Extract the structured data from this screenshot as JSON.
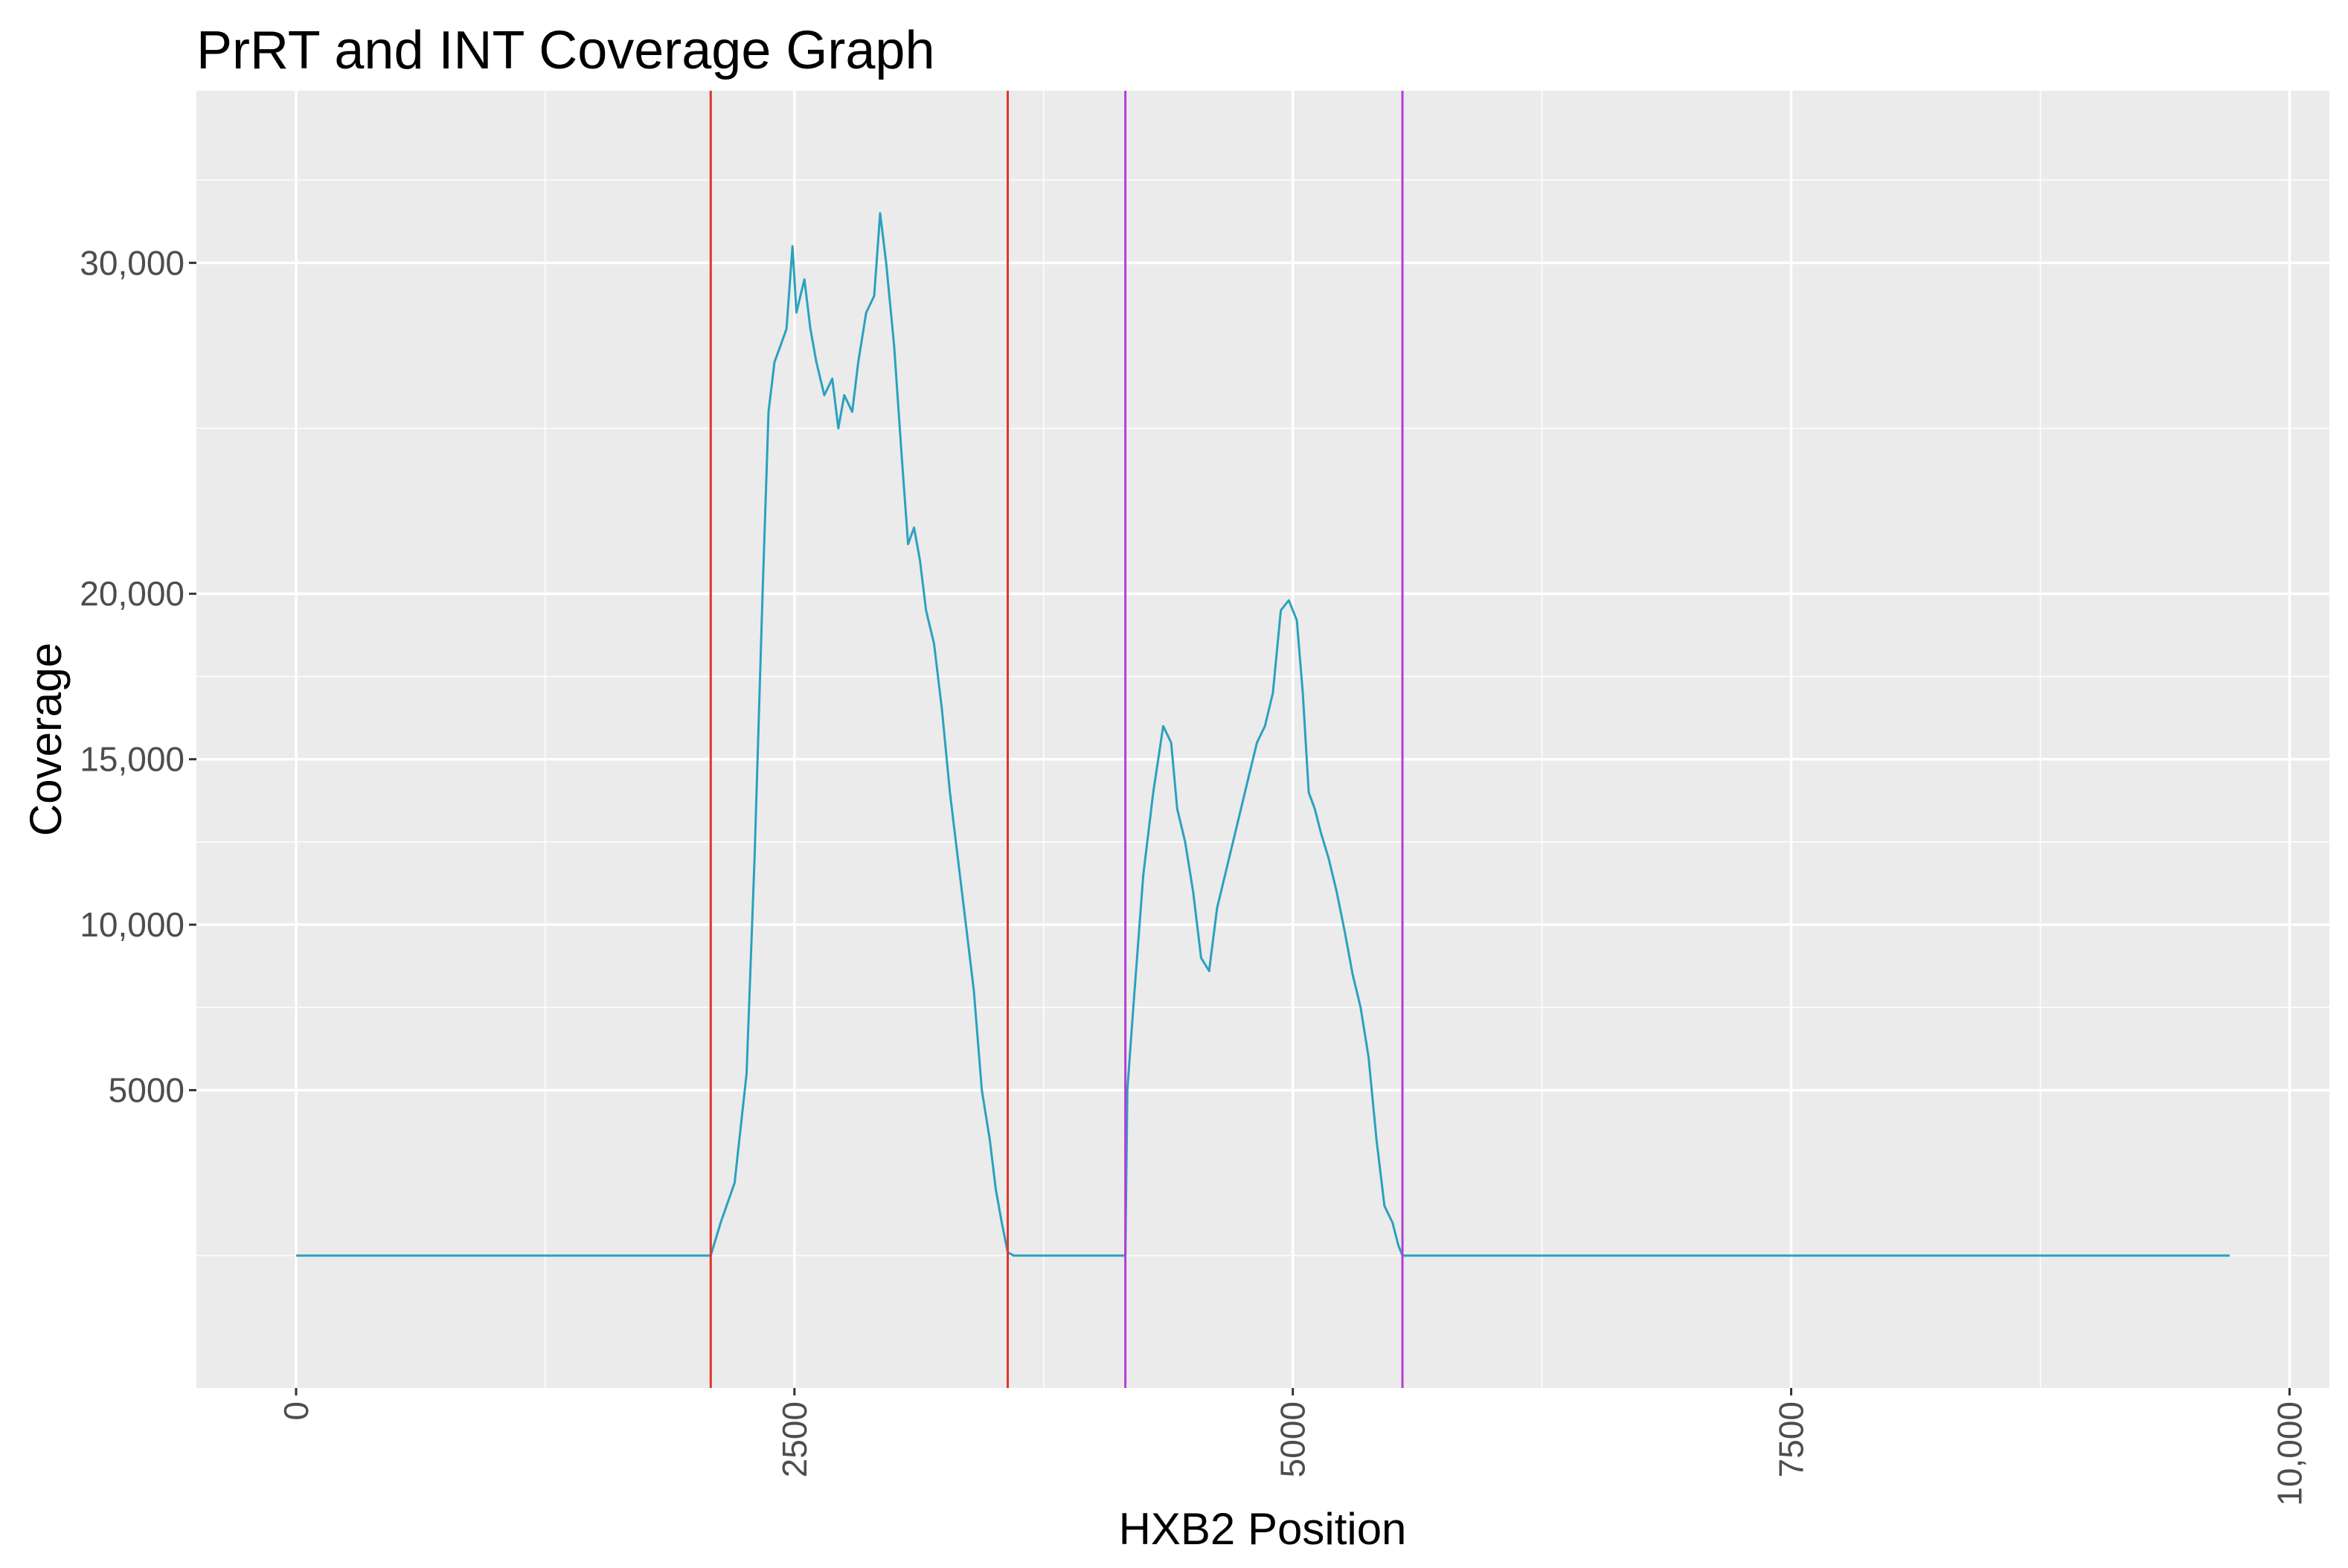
{
  "chart_data": {
    "type": "line",
    "title": "PrRT and INT Coverage Graph",
    "xlabel": "HXB2 Position",
    "ylabel": "Coverage",
    "xlim": [
      -500,
      10200
    ],
    "ylim": [
      -4000,
      35200
    ],
    "x_ticks": [
      {
        "value": 0,
        "label": "0"
      },
      {
        "value": 2500,
        "label": "2500"
      },
      {
        "value": 5000,
        "label": "5000"
      },
      {
        "value": 7500,
        "label": "7500"
      },
      {
        "value": 10000,
        "label": "10,000"
      }
    ],
    "y_ticks": [
      {
        "value": 5000,
        "label": "5000"
      },
      {
        "value": 10000,
        "label": "10,000"
      },
      {
        "value": 15000,
        "label": "15,000"
      },
      {
        "value": 20000,
        "label": "20,000"
      },
      {
        "value": 30000,
        "label": "30,000"
      }
    ],
    "grid": true,
    "legend": "none",
    "colors": {
      "panel": "#ebebeb",
      "grid": "#ffffff",
      "line": "#2aa1c0",
      "prrt_lines": "#e0342b",
      "int_lines": "#b13fd6"
    },
    "vertical_lines": [
      {
        "x": 2080,
        "group": "PrRT"
      },
      {
        "x": 3570,
        "group": "PrRT"
      },
      {
        "x": 4160,
        "group": "INT"
      },
      {
        "x": 5550,
        "group": "INT"
      }
    ],
    "series": [
      {
        "x": [
          0,
          1800,
          2080,
          2130,
          2200,
          2260,
          2300,
          2340,
          2370,
          2400,
          2430,
          2460,
          2490,
          2510,
          2550,
          2580,
          2610,
          2650,
          2690,
          2720,
          2750,
          2790,
          2820,
          2860,
          2900,
          2930,
          2960,
          3000,
          3040,
          3070,
          3100,
          3130,
          3160,
          3200,
          3240,
          3280,
          3320,
          3360,
          3400,
          3440,
          3480,
          3510,
          3540,
          3570,
          3600,
          4160,
          4170,
          4200,
          4250,
          4300,
          4350,
          4390,
          4420,
          4460,
          4500,
          4540,
          4580,
          4620,
          4660,
          4700,
          4740,
          4780,
          4820,
          4860,
          4900,
          4940,
          4980,
          5020,
          5050,
          5080,
          5110,
          5140,
          5180,
          5220,
          5260,
          5300,
          5340,
          5380,
          5420,
          5460,
          5500,
          5530,
          5550,
          5570,
          9700
        ],
        "y": [
          0,
          0,
          0,
          1000,
          2200,
          5500,
          12000,
          20000,
          25500,
          27000,
          27500,
          28000,
          30500,
          28500,
          29500,
          28000,
          27000,
          26000,
          26500,
          25000,
          26000,
          25500,
          27000,
          28500,
          29000,
          31500,
          30000,
          27500,
          24000,
          21500,
          22000,
          21000,
          19500,
          18500,
          16500,
          14000,
          12000,
          10000,
          8000,
          5000,
          3500,
          2000,
          1000,
          100,
          0,
          0,
          5000,
          7500,
          11500,
          14000,
          16000,
          15500,
          13500,
          12500,
          11000,
          9000,
          8600,
          10500,
          11500,
          12500,
          13500,
          14500,
          15500,
          16000,
          17000,
          19500,
          19800,
          19200,
          17000,
          14000,
          13500,
          12800,
          12000,
          11000,
          9800,
          8500,
          7500,
          6000,
          3500,
          1500,
          1000,
          300,
          0,
          0,
          0
        ]
      }
    ]
  }
}
